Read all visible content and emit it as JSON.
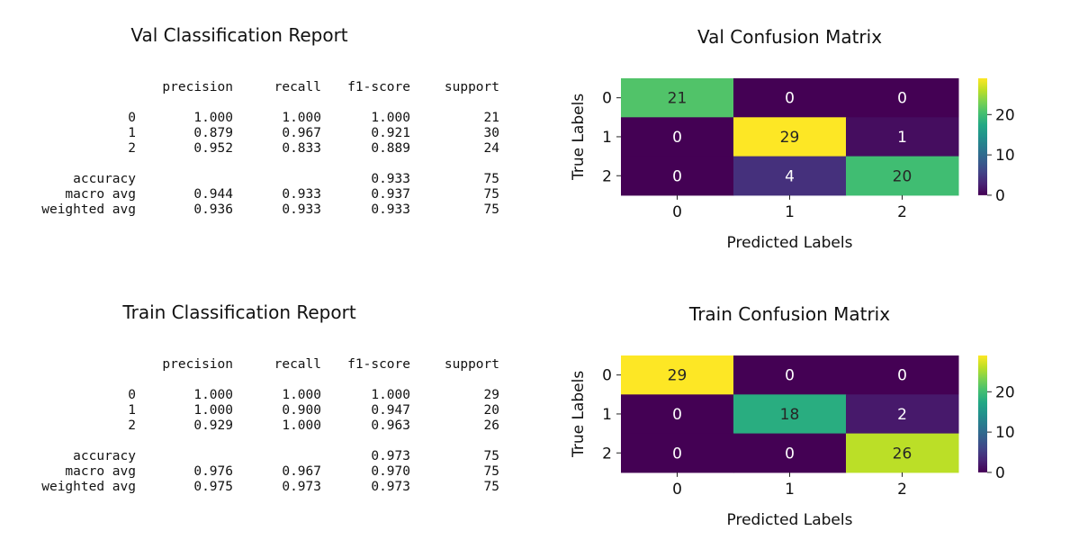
{
  "reports": [
    {
      "title": "Val Classification Report",
      "headers": [
        "precision",
        "recall",
        "f1-score",
        "support"
      ],
      "class_rows": [
        {
          "label": "0",
          "precision": "1.000",
          "recall": "1.000",
          "f1": "1.000",
          "support": "21"
        },
        {
          "label": "1",
          "precision": "0.879",
          "recall": "0.967",
          "f1": "0.921",
          "support": "30"
        },
        {
          "label": "2",
          "precision": "0.952",
          "recall": "0.833",
          "f1": "0.889",
          "support": "24"
        }
      ],
      "summary_rows": [
        {
          "label": "accuracy",
          "precision": "",
          "recall": "",
          "f1": "0.933",
          "support": "75"
        },
        {
          "label": "macro avg",
          "precision": "0.944",
          "recall": "0.933",
          "f1": "0.937",
          "support": "75"
        },
        {
          "label": "weighted avg",
          "precision": "0.936",
          "recall": "0.933",
          "f1": "0.933",
          "support": "75"
        }
      ]
    },
    {
      "title": "Train Classification Report",
      "headers": [
        "precision",
        "recall",
        "f1-score",
        "support"
      ],
      "class_rows": [
        {
          "label": "0",
          "precision": "1.000",
          "recall": "1.000",
          "f1": "1.000",
          "support": "29"
        },
        {
          "label": "1",
          "precision": "1.000",
          "recall": "0.900",
          "f1": "0.947",
          "support": "20"
        },
        {
          "label": "2",
          "precision": "0.929",
          "recall": "1.000",
          "f1": "0.963",
          "support": "26"
        }
      ],
      "summary_rows": [
        {
          "label": "accuracy",
          "precision": "",
          "recall": "",
          "f1": "0.973",
          "support": "75"
        },
        {
          "label": "macro avg",
          "precision": "0.976",
          "recall": "0.967",
          "f1": "0.970",
          "support": "75"
        },
        {
          "label": "weighted avg",
          "precision": "0.975",
          "recall": "0.973",
          "f1": "0.973",
          "support": "75"
        }
      ]
    }
  ],
  "chart_data": [
    {
      "type": "heatmap",
      "title": "Val Confusion Matrix",
      "xlabel": "Predicted Labels",
      "ylabel": "True Labels",
      "x_categories": [
        "0",
        "1",
        "2"
      ],
      "y_categories": [
        "0",
        "1",
        "2"
      ],
      "values": [
        [
          21,
          0,
          0
        ],
        [
          0,
          29,
          1
        ],
        [
          0,
          4,
          20
        ]
      ],
      "colormap": "viridis",
      "vmin": 0,
      "vmax": 29,
      "colorbar_ticks": [
        0,
        10,
        20
      ]
    },
    {
      "type": "heatmap",
      "title": "Train Confusion Matrix",
      "xlabel": "Predicted Labels",
      "ylabel": "True Labels",
      "x_categories": [
        "0",
        "1",
        "2"
      ],
      "y_categories": [
        "0",
        "1",
        "2"
      ],
      "values": [
        [
          29,
          0,
          0
        ],
        [
          0,
          18,
          2
        ],
        [
          0,
          0,
          26
        ]
      ],
      "colormap": "viridis",
      "vmin": 0,
      "vmax": 29,
      "colorbar_ticks": [
        0,
        10,
        20
      ]
    }
  ]
}
